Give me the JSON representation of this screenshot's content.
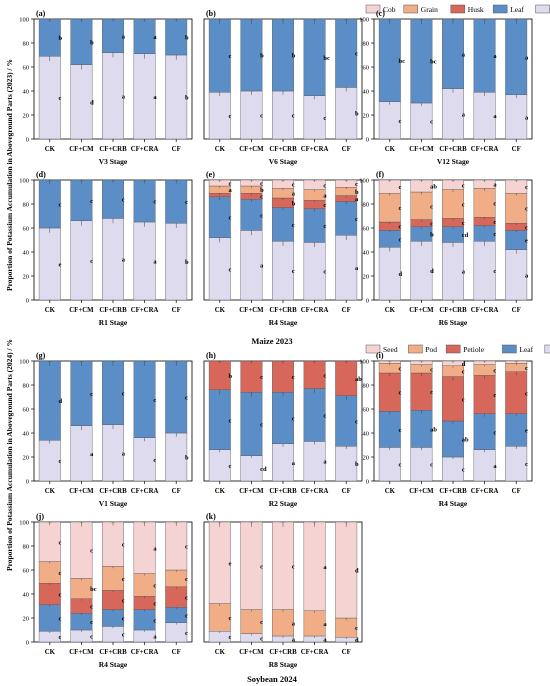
{
  "colors": {
    "Cob": "#f6d3d3",
    "Grain": "#f1ad86",
    "Husk": "#d6675a",
    "Leaf": "#5b8ec7",
    "Stem": "#dedbee",
    "Seed": "#f6d3d3",
    "Pod": "#f1ad86",
    "Petiole": "#d6675a"
  },
  "figure": {
    "ylabel_2023": "Proportion of Potassium Accumulation in Aboveground Parts (2023) / %",
    "ylabel_2024": "Proportion of Potassium Accumulation in Aboveground Parts (2024) / %",
    "group_2023": "Maize 2023",
    "group_2024": "Soybean 2024",
    "legend_2023": [
      "Cob",
      "Grain",
      "Husk",
      "Leaf",
      "Stem"
    ],
    "legend_2024": [
      "Seed",
      "Pod",
      "Petiole",
      "Leaf",
      "Stem"
    ]
  },
  "chart_data": [
    {
      "type": "bar",
      "panel": "(a)",
      "xlabel": "V3 Stage",
      "categories": [
        "CK",
        "CF+CM",
        "CF+CRB",
        "CF+CRA",
        "CF"
      ],
      "ylim": [
        0,
        100
      ],
      "yticks": [
        0,
        20,
        40,
        60,
        80,
        100
      ],
      "series": [
        {
          "name": "Stem",
          "values": [
            69,
            62,
            72,
            71,
            70
          ],
          "letters": [
            "c",
            "d",
            "a",
            "a",
            "b"
          ]
        },
        {
          "name": "Leaf",
          "values": [
            31,
            38,
            28,
            29,
            30
          ],
          "letters": [
            "b",
            "b",
            "a",
            "a",
            "b"
          ]
        }
      ]
    },
    {
      "type": "bar",
      "panel": "(b)",
      "xlabel": "V6 Stage",
      "categories": [
        "CK",
        "CF+CM",
        "CF+CRB",
        "CF+CRA",
        "CF"
      ],
      "ylim": [
        0,
        100
      ],
      "yticks": [],
      "series": [
        {
          "name": "Stem",
          "values": [
            39,
            40,
            40,
            36,
            43
          ],
          "letters": [
            "c",
            "c",
            "c",
            "c",
            "b"
          ]
        },
        {
          "name": "Leaf",
          "values": [
            61,
            60,
            60,
            64,
            57
          ],
          "letters": [
            "c",
            "b",
            "b",
            "bc",
            "c"
          ]
        }
      ]
    },
    {
      "type": "bar",
      "panel": "(c)",
      "xlabel": "V12 Stage",
      "categories": [
        "CK",
        "CF+CM",
        "CF+CRB",
        "CF+CRA",
        "CF"
      ],
      "ylim": [
        0,
        100
      ],
      "yticks": [
        0,
        20,
        40,
        60,
        80,
        100
      ],
      "series": [
        {
          "name": "Stem",
          "values": [
            31,
            30,
            42,
            39,
            37
          ],
          "letters": [
            "c",
            "c",
            "a",
            "a",
            "a"
          ]
        },
        {
          "name": "Leaf",
          "values": [
            69,
            70,
            58,
            61,
            63
          ],
          "letters": [
            "bc",
            "bc",
            "a",
            "a",
            "a"
          ]
        }
      ]
    },
    {
      "type": "bar",
      "panel": "(d)",
      "xlabel": "R1 Stage",
      "categories": [
        "CK",
        "CF+CM",
        "CF+CRB",
        "CF+CRA",
        "CF"
      ],
      "ylim": [
        0,
        100
      ],
      "yticks": [
        0,
        20,
        40,
        60,
        80,
        100
      ],
      "series": [
        {
          "name": "Stem",
          "values": [
            60,
            66,
            68,
            65,
            64
          ],
          "letters": [
            "e",
            "c",
            "a",
            "a",
            "b"
          ]
        },
        {
          "name": "Leaf",
          "values": [
            40,
            34,
            32,
            35,
            36
          ],
          "letters": [
            "c",
            "c",
            "c",
            "c",
            "c"
          ]
        }
      ]
    },
    {
      "type": "bar",
      "panel": "(e)",
      "xlabel": "R4 Stage",
      "categories": [
        "CK",
        "CF+CM",
        "CF+CRB",
        "CF+CRA",
        "CF"
      ],
      "ylim": [
        0,
        100
      ],
      "yticks": [],
      "series": [
        {
          "name": "Stem",
          "values": [
            52,
            58,
            49,
            48,
            54
          ],
          "letters": [
            "c",
            "a",
            "c",
            "c",
            "a"
          ]
        },
        {
          "name": "Leaf",
          "values": [
            34,
            26,
            28,
            28,
            28
          ],
          "letters": [
            "c",
            "c",
            "c",
            "c",
            "c"
          ]
        },
        {
          "name": "Husk",
          "values": [
            3,
            5,
            8,
            7,
            5
          ],
          "letters": [
            "b",
            "c",
            "b",
            "c",
            "a"
          ]
        },
        {
          "name": "Grain",
          "values": [
            6,
            6,
            8,
            9,
            7
          ],
          "letters": [
            "a",
            "b",
            "a",
            "a",
            "b"
          ]
        },
        {
          "name": "Cob",
          "values": [
            5,
            5,
            7,
            8,
            6
          ],
          "letters": [
            "c",
            "c",
            "c",
            "c",
            "c"
          ]
        }
      ]
    },
    {
      "type": "bar",
      "panel": "(f)",
      "xlabel": "R6 Stage",
      "categories": [
        "CK",
        "CF+CM",
        "CF+CRB",
        "CF+CRA",
        "CF"
      ],
      "ylim": [
        0,
        100
      ],
      "yticks": [
        0,
        20,
        40,
        60,
        80,
        100
      ],
      "series": [
        {
          "name": "Stem",
          "values": [
            44,
            49,
            48,
            49,
            42
          ],
          "letters": [
            "d",
            "d",
            "a",
            "c",
            "a"
          ]
        },
        {
          "name": "Leaf",
          "values": [
            14,
            12,
            13,
            13,
            16
          ],
          "letters": [
            "c",
            "b",
            "cd",
            "c",
            "e"
          ]
        },
        {
          "name": "Husk",
          "values": [
            7,
            6,
            7,
            7,
            6
          ],
          "letters": [
            "c",
            "c",
            "c",
            "c",
            "c"
          ]
        },
        {
          "name": "Grain",
          "values": [
            24,
            23,
            24,
            24,
            25
          ],
          "letters": [
            "c",
            "c",
            "c",
            "c",
            "c"
          ]
        },
        {
          "name": "Cob",
          "values": [
            11,
            10,
            8,
            7,
            11
          ],
          "letters": [
            "c",
            "ab",
            "c",
            "a",
            "c"
          ]
        }
      ]
    },
    {
      "type": "bar",
      "panel": "(g)",
      "xlabel": "V1 Stage",
      "categories": [
        "CK",
        "CF+CM",
        "CF+CRB",
        "CF+CRA",
        "CF"
      ],
      "ylim": [
        0,
        100
      ],
      "yticks": [
        0,
        20,
        40,
        60,
        80,
        100
      ],
      "series": [
        {
          "name": "Stem",
          "values": [
            34,
            46,
            47,
            36,
            40
          ],
          "letters": [
            "c",
            "a",
            "a",
            "c",
            "b"
          ]
        },
        {
          "name": "Leaf",
          "values": [
            66,
            54,
            53,
            64,
            60
          ],
          "letters": [
            "d",
            "c",
            "c",
            "c",
            "c"
          ]
        }
      ]
    },
    {
      "type": "bar",
      "panel": "(h)",
      "xlabel": "R2 Stage",
      "categories": [
        "CK",
        "CF+CM",
        "CF+CRB",
        "CF+CRA",
        "CF"
      ],
      "ylim": [
        0,
        100
      ],
      "yticks": [],
      "series": [
        {
          "name": "Stem",
          "values": [
            26,
            21,
            31,
            33,
            29
          ],
          "letters": [
            "c",
            "cd",
            "a",
            "a",
            "b"
          ]
        },
        {
          "name": "Leaf",
          "values": [
            50,
            53,
            43,
            44,
            42
          ],
          "letters": [
            "c",
            "c",
            "c",
            "c",
            "c"
          ]
        },
        {
          "name": "Petiole",
          "values": [
            24,
            26,
            26,
            23,
            29
          ],
          "letters": [
            "b",
            "c",
            "c",
            "c",
            "ab"
          ]
        }
      ]
    },
    {
      "type": "bar",
      "panel": "(i)",
      "xlabel": "R4 Stage",
      "categories": [
        "CK",
        "CF+CM",
        "CF+CRB",
        "CF+CRA",
        "CF"
      ],
      "ylim": [
        0,
        100
      ],
      "yticks": [
        0,
        20,
        40,
        60,
        80,
        100
      ],
      "series": [
        {
          "name": "Stem",
          "values": [
            28,
            28,
            20,
            26,
            29
          ],
          "letters": [
            "c",
            "c",
            "c",
            "a",
            "c"
          ]
        },
        {
          "name": "Leaf",
          "values": [
            30,
            31,
            30,
            30,
            27
          ],
          "letters": [
            "c",
            "ab",
            "ab",
            "c",
            "e"
          ]
        },
        {
          "name": "Petiole",
          "values": [
            32,
            31,
            37,
            32,
            35
          ],
          "letters": [
            "c",
            "c",
            "c",
            "c",
            "c"
          ]
        },
        {
          "name": "Pod",
          "values": [
            8,
            7,
            9,
            9,
            7
          ],
          "letters": [
            "c",
            "c",
            "c",
            "c",
            "c"
          ]
        },
        {
          "name": "Seed",
          "values": [
            2,
            3,
            4,
            3,
            2
          ],
          "letters": [
            "d",
            "c",
            "d",
            "c",
            "d"
          ]
        }
      ]
    },
    {
      "type": "bar",
      "panel": "(j)",
      "xlabel": "R4 Stage",
      "categories": [
        "CK",
        "CF+CM",
        "CF+CRB",
        "CF+CRA",
        "CF"
      ],
      "ylim": [
        0,
        100
      ],
      "yticks": [
        0,
        20,
        40,
        60,
        80,
        100
      ],
      "series": [
        {
          "name": "Stem",
          "values": [
            9,
            10,
            13,
            10,
            16
          ],
          "letters": [
            "c",
            "c",
            "c",
            "a",
            "c"
          ]
        },
        {
          "name": "Leaf",
          "values": [
            22,
            14,
            14,
            17,
            13
          ],
          "letters": [
            "c",
            "c",
            "c",
            "c",
            "c"
          ]
        },
        {
          "name": "Petiole",
          "values": [
            18,
            12,
            16,
            11,
            17
          ],
          "letters": [
            "c",
            "c",
            "c",
            "c",
            "c"
          ]
        },
        {
          "name": "Pod",
          "values": [
            18,
            17,
            20,
            19,
            14
          ],
          "letters": [
            "c",
            "bc",
            "c",
            "c",
            "c"
          ]
        },
        {
          "name": "Seed",
          "values": [
            33,
            47,
            37,
            43,
            40
          ],
          "letters": [
            "c",
            "c",
            "c",
            "a",
            "c"
          ]
        }
      ]
    },
    {
      "type": "bar",
      "panel": "(k)",
      "xlabel": "R8 Stage",
      "categories": [
        "CK",
        "CF+CM",
        "CF+CRB",
        "CF+CRA",
        "CF"
      ],
      "ylim": [
        0,
        100
      ],
      "yticks": [],
      "series": [
        {
          "name": "Stem",
          "values": [
            9,
            7,
            5,
            5,
            4
          ],
          "letters": [
            "c",
            "c",
            "a",
            "a",
            "d"
          ]
        },
        {
          "name": "Pod",
          "values": [
            23,
            20,
            22,
            21,
            16
          ],
          "letters": [
            "c",
            "c",
            "a",
            "a",
            "c"
          ]
        },
        {
          "name": "Seed",
          "values": [
            68,
            73,
            73,
            74,
            80
          ],
          "letters": [
            "e",
            "c",
            "c",
            "a",
            "d"
          ]
        }
      ]
    }
  ]
}
